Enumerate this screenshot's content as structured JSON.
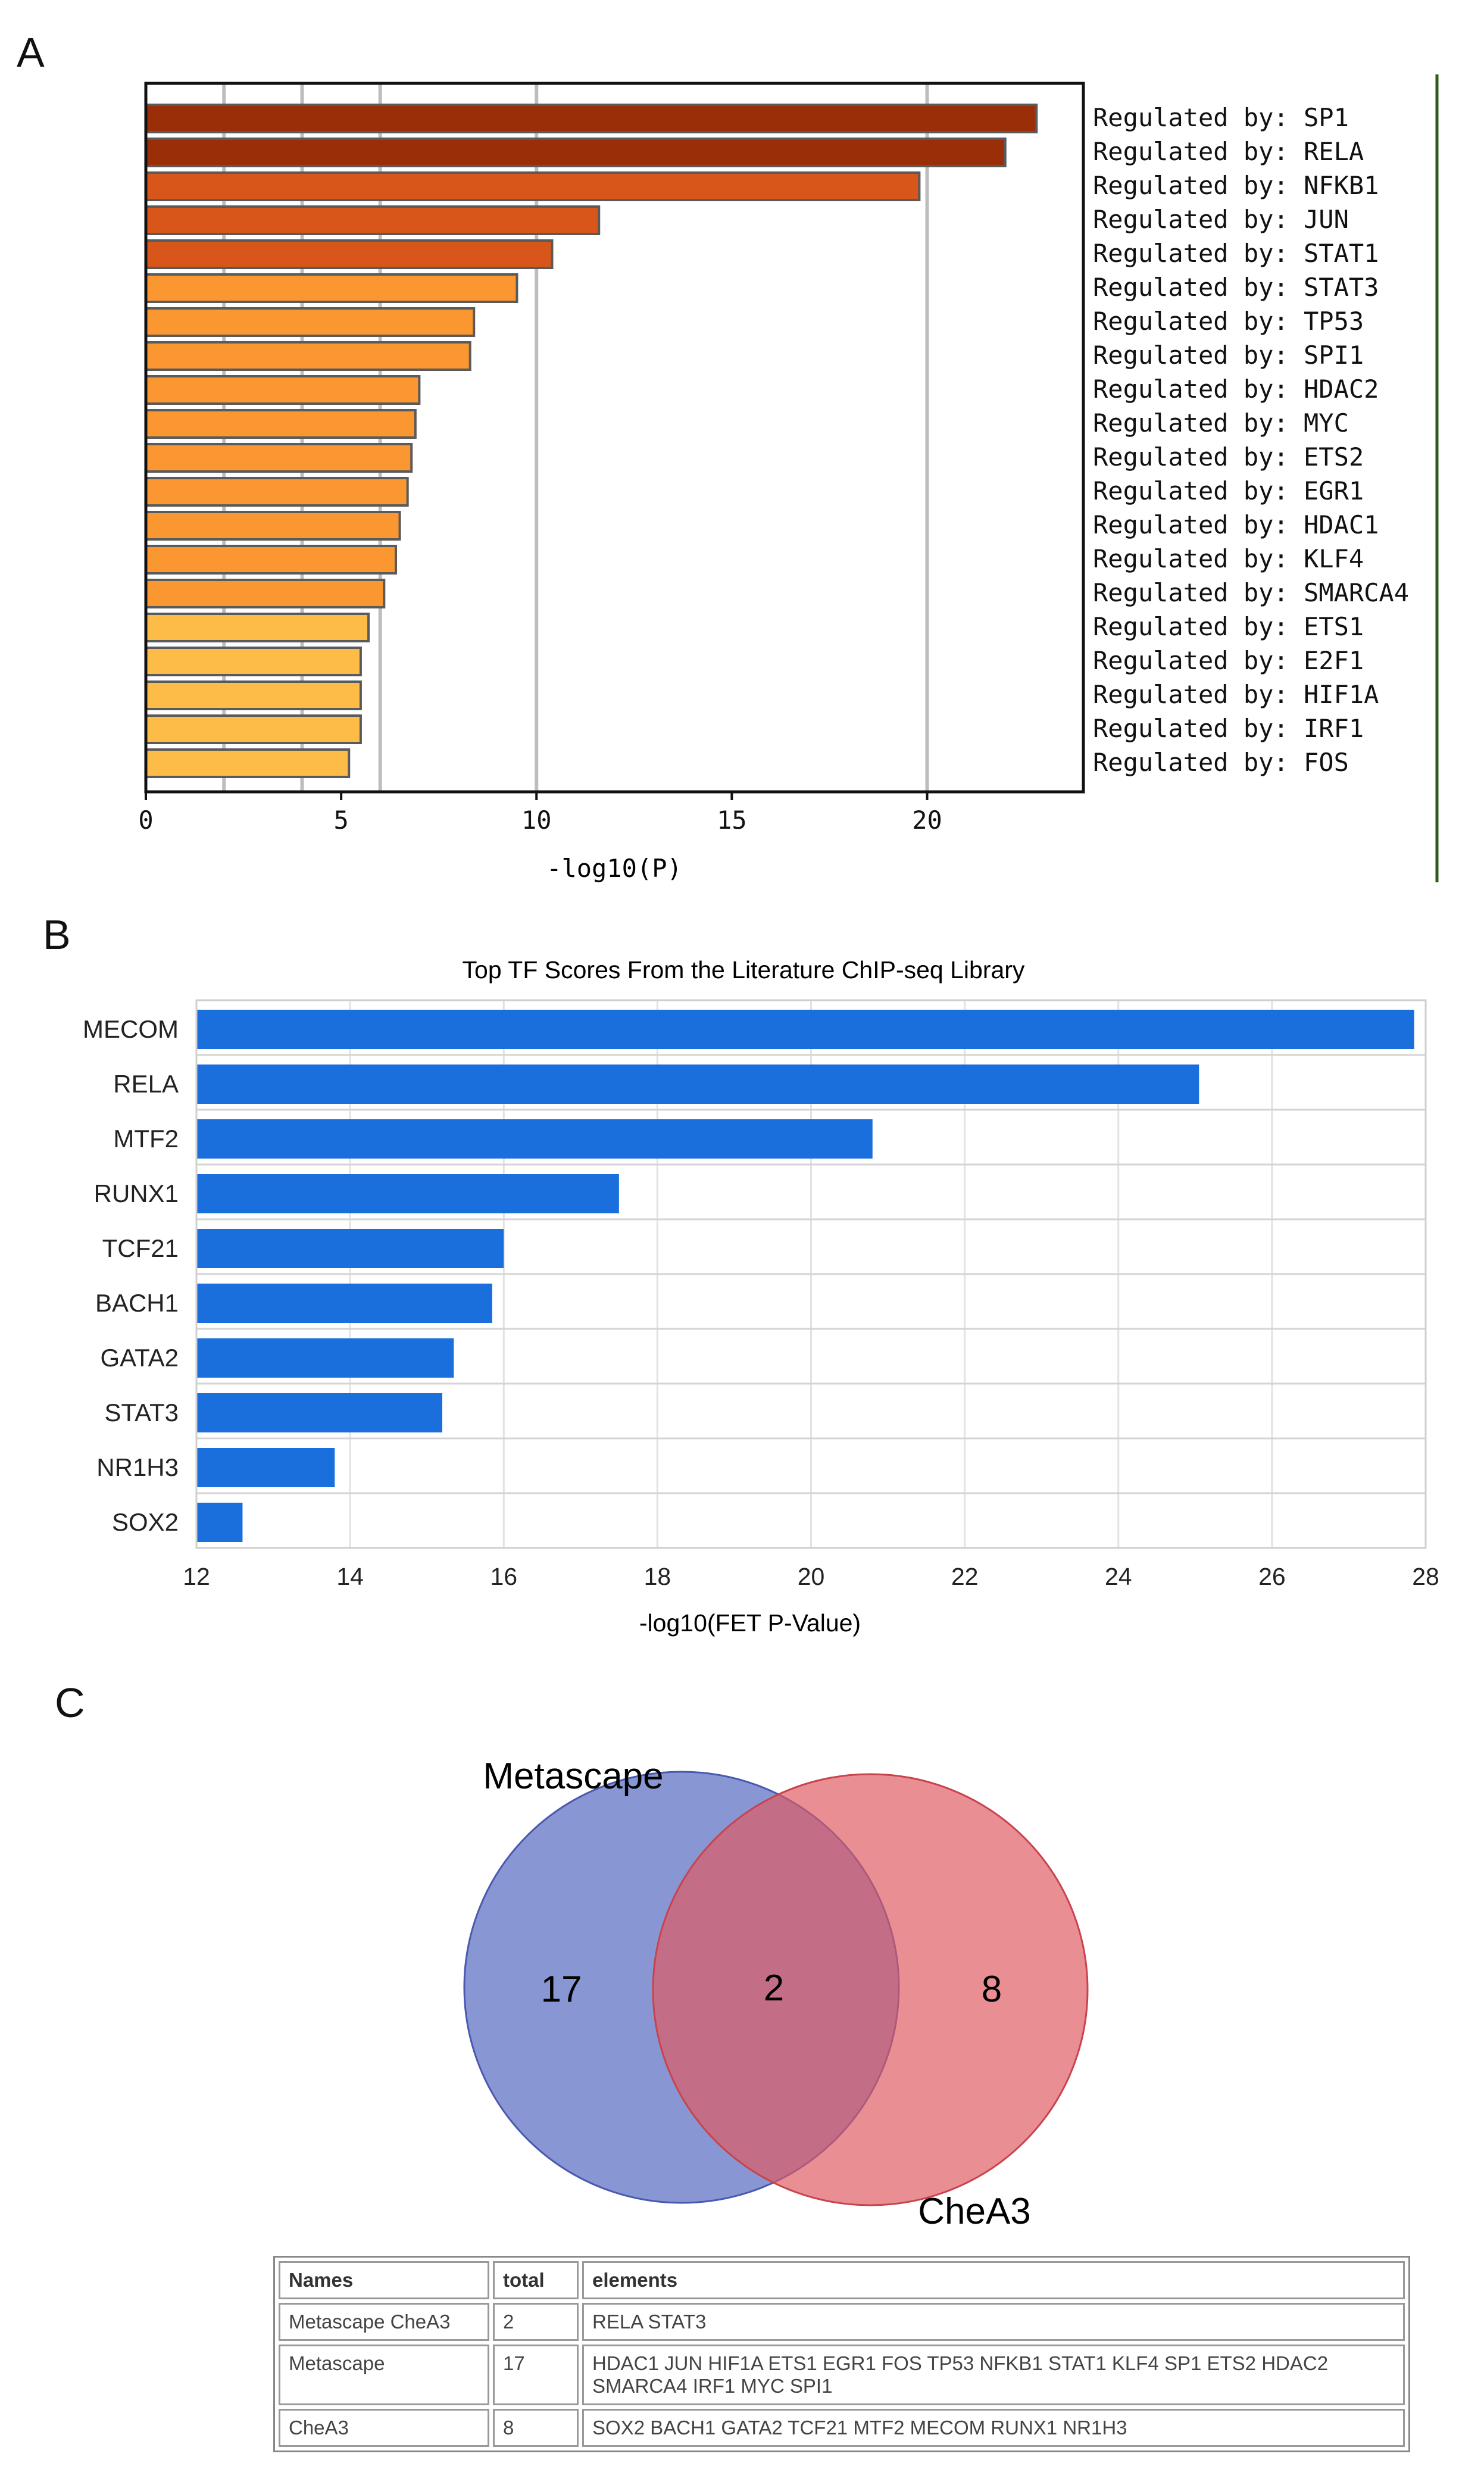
{
  "panels": {
    "a": "A",
    "b": "B",
    "c": "C"
  },
  "colors": {
    "bar_a_dark": "#9a2e08",
    "bar_a_mid": "#d8561a",
    "bar_a_orange": "#fb9731",
    "bar_a_light": "#fdbb48",
    "bar_b": "#1a6fdc",
    "venn_left": "#5a6fc4",
    "venn_right": "#de5a62"
  },
  "chart_data": [
    {
      "id": "panel-a",
      "type": "bar",
      "orientation": "horizontal",
      "title": "",
      "xlabel": "-log10(P)",
      "ylabel": "",
      "xlim": [
        0,
        24
      ],
      "xticks": [
        0,
        5,
        10,
        15,
        20
      ],
      "gridlines_at": [
        2,
        4,
        6,
        10,
        20
      ],
      "legend_position": "right",
      "categories": [
        "Regulated by: SP1",
        "Regulated by: RELA",
        "Regulated by: NFKB1",
        "Regulated by: JUN",
        "Regulated by: STAT1",
        "Regulated by: STAT3",
        "Regulated by: TP53",
        "Regulated by: SPI1",
        "Regulated by: HDAC2",
        "Regulated by: MYC",
        "Regulated by: ETS2",
        "Regulated by: EGR1",
        "Regulated by: HDAC1",
        "Regulated by: KLF4",
        "Regulated by: SMARCA4",
        "Regulated by: ETS1",
        "Regulated by: E2F1",
        "Regulated by: HIF1A",
        "Regulated by: IRF1",
        "Regulated by: FOS"
      ],
      "values": [
        22.8,
        22.0,
        19.8,
        11.6,
        10.4,
        9.5,
        8.4,
        8.3,
        7.0,
        6.9,
        6.8,
        6.7,
        6.5,
        6.4,
        6.1,
        5.7,
        5.5,
        5.5,
        5.5,
        5.2
      ],
      "bar_colors": [
        "#9a2e08",
        "#9a2e08",
        "#d8561a",
        "#d8561a",
        "#d8561a",
        "#fb9731",
        "#fb9731",
        "#fb9731",
        "#fb9731",
        "#fb9731",
        "#fb9731",
        "#fb9731",
        "#fb9731",
        "#fb9731",
        "#fb9731",
        "#fdbb48",
        "#fdbb48",
        "#fdbb48",
        "#fdbb48",
        "#fdbb48"
      ]
    },
    {
      "id": "panel-b",
      "type": "bar",
      "orientation": "horizontal",
      "title": "Top TF Scores From the Literature ChIP-seq Library",
      "xlabel": "-log10(FET P-Value)",
      "ylabel": "",
      "xlim": [
        12,
        28
      ],
      "xticks": [
        12,
        14,
        16,
        18,
        20,
        22,
        24,
        26,
        28
      ],
      "categories": [
        "MECOM",
        "RELA",
        "MTF2",
        "RUNX1",
        "TCF21",
        "BACH1",
        "GATA2",
        "STAT3",
        "NR1H3",
        "SOX2"
      ],
      "values": [
        27.85,
        25.05,
        20.8,
        17.5,
        16.0,
        15.85,
        15.35,
        15.2,
        13.8,
        12.6
      ]
    }
  ],
  "venn": {
    "left_label": "Metascape",
    "right_label": "CheA3",
    "left_only": "17",
    "overlap": "2",
    "right_only": "8"
  },
  "table": {
    "headers": [
      "Names",
      "total",
      "elements"
    ],
    "rows": [
      {
        "names": "Metascape CheA3",
        "total": "2",
        "elements": "RELA STAT3"
      },
      {
        "names": "Metascape",
        "total": "17",
        "elements": "HDAC1 JUN HIF1A ETS1 EGR1 FOS TP53 NFKB1 STAT1 KLF4 SP1 ETS2 HDAC2 SMARCA4 IRF1 MYC SPI1"
      },
      {
        "names": "CheA3",
        "total": "8",
        "elements": "SOX2 BACH1 GATA2 TCF21 MTF2 MECOM RUNX1 NR1H3"
      }
    ]
  }
}
